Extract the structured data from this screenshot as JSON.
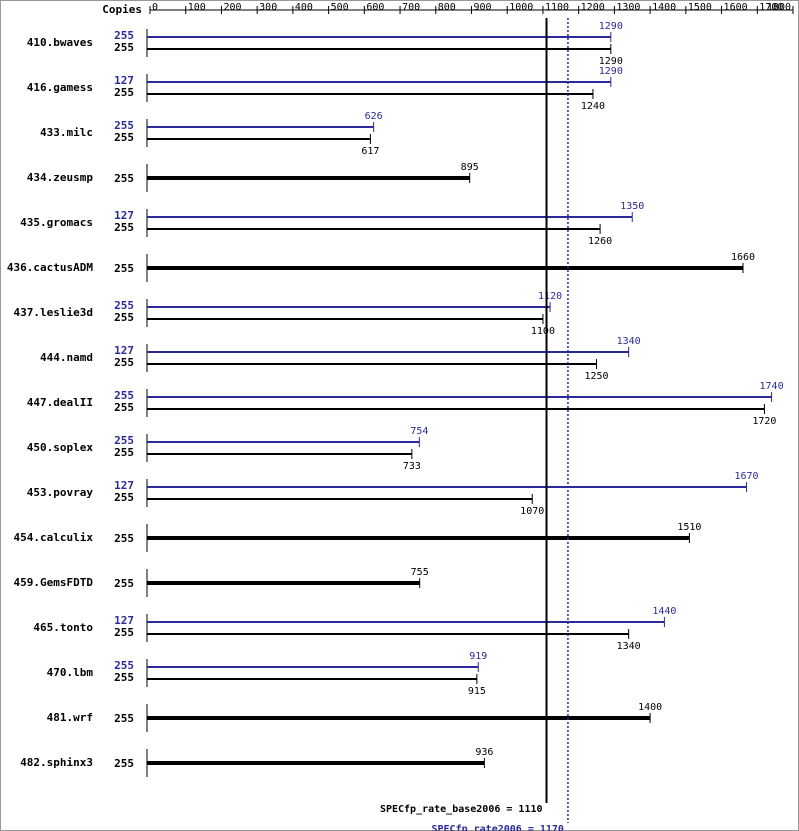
{
  "chart_data": {
    "type": "bar",
    "orientation": "horizontal",
    "copies_label": "Copies",
    "categories": [
      "410.bwaves",
      "416.gamess",
      "433.milc",
      "434.zeusmp",
      "435.gromacs",
      "436.cactusADM",
      "437.leslie3d",
      "444.namd",
      "447.dealII",
      "450.soplex",
      "453.povray",
      "454.calculix",
      "459.GemsFDTD",
      "465.tonto",
      "470.lbm",
      "481.wrf",
      "482.sphinx3"
    ],
    "series": [
      {
        "color": "#2a2a9a",
        "copies": [
          255,
          127,
          255,
          null,
          127,
          null,
          255,
          127,
          255,
          255,
          127,
          null,
          null,
          127,
          255,
          null,
          null
        ],
        "values": [
          1290,
          1290,
          626,
          null,
          1350,
          null,
          1120,
          1340,
          1740,
          754,
          1670,
          null,
          null,
          1440,
          919,
          null,
          null
        ]
      },
      {
        "color": "#000000",
        "copies": [
          255,
          255,
          255,
          255,
          255,
          255,
          255,
          255,
          255,
          255,
          255,
          255,
          255,
          255,
          255,
          255,
          255
        ],
        "values": [
          1290,
          1240,
          617,
          895,
          1260,
          1660,
          1100,
          1250,
          1720,
          733,
          1070,
          1510,
          755,
          1340,
          915,
          1400,
          936
        ]
      }
    ],
    "xlim": [
      0,
      1800
    ],
    "xticks": [
      0,
      100,
      200,
      300,
      400,
      500,
      600,
      700,
      800,
      900,
      1000,
      1100,
      1200,
      1300,
      1400,
      1500,
      1600,
      1700,
      1800
    ],
    "reference_lines": [
      {
        "label": "SPECfp_rate_base2006 = 1110",
        "value": 1110,
        "color": "#000000",
        "dashed": false
      },
      {
        "label": "SPECfp_rate2006 = 1170",
        "value": 1170,
        "color": "#2a2a9a",
        "dashed": true
      }
    ]
  }
}
